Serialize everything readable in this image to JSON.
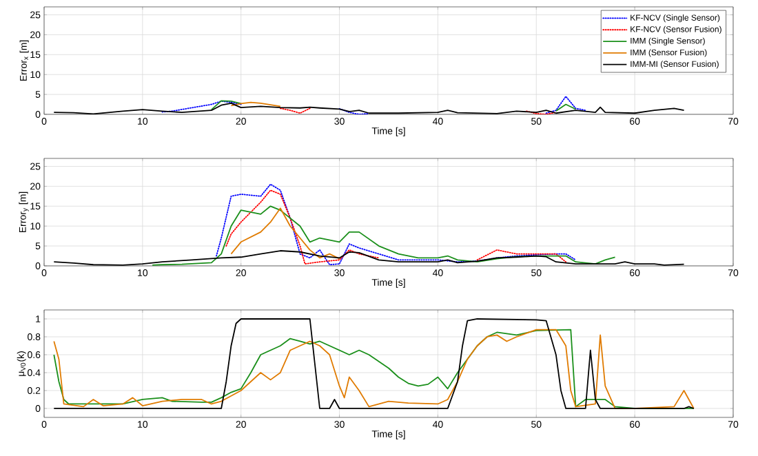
{
  "chart_data": [
    {
      "type": "line",
      "xlabel": "Time [s]",
      "ylabel": "Error$_{x}$ [m]",
      "xlim": [
        0,
        70
      ],
      "ylim": [
        0,
        27
      ],
      "xticks": [
        0,
        10,
        20,
        30,
        40,
        50,
        60,
        70
      ],
      "yticks": [
        0,
        5,
        10,
        15,
        20,
        25
      ],
      "grid": true,
      "legend": "top right",
      "series": [
        {
          "name": "KF-NCV (Single Sensor)",
          "color": "#0000ff",
          "line_style": "dotted",
          "x": [
            12,
            13,
            17,
            18,
            19,
            20,
            21,
            30,
            31,
            32,
            33,
            40,
            51,
            52,
            53,
            54,
            55
          ],
          "values": [
            0.6,
            0.8,
            2.5,
            3.3,
            3.0,
            2.5,
            null,
            1.4,
            0.5,
            0,
            0.2,
            null,
            0.3,
            1.0,
            4.5,
            1.5,
            1.0
          ]
        },
        {
          "name": "KF-NCV (Sensor Fusion)",
          "color": "#ff0000",
          "line_style": "dotted",
          "x": [
            24,
            25,
            26,
            27,
            38,
            49,
            50,
            51,
            52
          ],
          "values": [
            1.5,
            1.0,
            0.3,
            1.5,
            null,
            0.8,
            0.2,
            0,
            0.5
          ]
        },
        {
          "name": "IMM (Single Sensor)",
          "color": "#1a8f1a",
          "line_style": "solid",
          "x": [
            17,
            18,
            19,
            20,
            36,
            52,
            53,
            54
          ],
          "values": [
            1.2,
            3.4,
            3.3,
            2.7,
            null,
            0.8,
            2.5,
            1.3
          ]
        },
        {
          "name": "IMM (Sensor Fusion)",
          "color": "#e07b00",
          "line_style": "solid",
          "x": [
            19,
            20,
            21,
            22,
            23,
            24
          ],
          "values": [
            2.2,
            2.7,
            3.0,
            2.8,
            2.4,
            2.0
          ]
        },
        {
          "name": "IMM-MI (Sensor Fusion)",
          "color": "#000000",
          "line_style": "solid",
          "x": [
            1,
            3,
            5,
            8,
            10,
            12,
            14,
            17,
            18,
            19,
            20,
            22,
            24,
            26,
            27,
            28,
            30,
            31,
            32,
            33,
            36,
            40,
            41,
            42,
            46,
            48,
            50,
            51,
            52,
            54,
            56,
            56.5,
            57,
            60,
            62,
            64,
            65
          ],
          "values": [
            0.5,
            0.4,
            0.1,
            0.8,
            1.2,
            0.8,
            0.5,
            1.0,
            2.3,
            2.8,
            1.7,
            2.0,
            1.7,
            1.6,
            1.8,
            1.6,
            1.3,
            0.7,
            1.0,
            0.3,
            0.3,
            0.5,
            1.0,
            0.4,
            0.2,
            0.8,
            0.5,
            1.0,
            0.3,
            1.0,
            0.5,
            1.8,
            0.5,
            0.3,
            1.0,
            1.5,
            1.0
          ]
        }
      ]
    },
    {
      "type": "line",
      "xlabel": "Time [s]",
      "ylabel": "Error$_{y}$ [m]",
      "xlim": [
        0,
        70
      ],
      "ylim": [
        0,
        27
      ],
      "xticks": [
        0,
        10,
        20,
        30,
        40,
        50,
        60,
        70
      ],
      "yticks": [
        0,
        5,
        10,
        15,
        20,
        25
      ],
      "grid": true,
      "series": [
        {
          "color": "#0000ff",
          "line_style": "dotted",
          "x": [
            17.5,
            18,
            19,
            20,
            22,
            23,
            24,
            25,
            26,
            27,
            28,
            29,
            30,
            31,
            32,
            34,
            36,
            40,
            42,
            44,
            46,
            48,
            50,
            52,
            53,
            54
          ],
          "values": [
            2.5,
            7,
            17.5,
            18,
            17.5,
            20.5,
            19,
            12,
            3,
            2,
            4,
            0.3,
            0.5,
            5.5,
            4.5,
            3.0,
            1.5,
            1.5,
            1,
            1.2,
            2.0,
            2.5,
            2.8,
            3.0,
            3.0,
            1.5
          ]
        },
        {
          "color": "#ff0000",
          "line_style": "dotted",
          "x": [
            18.5,
            19,
            20,
            22,
            23,
            24,
            25,
            26,
            26.5,
            28,
            30,
            31,
            32,
            34,
            38,
            44,
            46,
            48,
            50,
            52,
            53
          ],
          "values": [
            5,
            8,
            11,
            16,
            19,
            18,
            12,
            5,
            0.5,
            1,
            1.5,
            4,
            3,
            2,
            null,
            1.5,
            4,
            3,
            3,
            3,
            1
          ]
        },
        {
          "color": "#1a8f1a",
          "line_style": "solid",
          "x": [
            11,
            12,
            14,
            17,
            18,
            19,
            20,
            22,
            23,
            24,
            26,
            27,
            28,
            30,
            31,
            32,
            34,
            36,
            38,
            40,
            41,
            42,
            44,
            46,
            48,
            50,
            53,
            54,
            56,
            57,
            58
          ],
          "values": [
            0.2,
            0.3,
            0.4,
            0.8,
            3,
            10,
            14,
            13,
            15,
            14,
            10,
            6,
            7,
            6,
            8.5,
            8.5,
            5,
            3,
            2,
            2,
            2.5,
            1.5,
            1,
            1.8,
            2.3,
            2.5,
            2.5,
            1,
            0.5,
            1.5,
            2.2
          ]
        },
        {
          "color": "#e07b00",
          "line_style": "solid",
          "x": [
            19,
            20,
            22,
            23,
            24,
            25,
            26,
            27,
            28,
            29,
            30
          ],
          "values": [
            3,
            6,
            8.5,
            11,
            14.5,
            10,
            7,
            4,
            2,
            3,
            1.8
          ]
        },
        {
          "color": "#000000",
          "line_style": "solid",
          "x": [
            1,
            3,
            5,
            8,
            10,
            12,
            15,
            18,
            20,
            22,
            24,
            26,
            28,
            30,
            31,
            32,
            34,
            36,
            40,
            41,
            42,
            44,
            46,
            48,
            50,
            51,
            52,
            54,
            56,
            58,
            59,
            60,
            62,
            63,
            65
          ],
          "values": [
            1,
            0.7,
            0.3,
            0.2,
            0.5,
            1.0,
            1.5,
            2,
            2.2,
            3,
            3.8,
            3.5,
            2.5,
            2.0,
            3.5,
            3.3,
            1.5,
            1,
            1,
            1.5,
            0.8,
            1.2,
            2,
            2.2,
            2.5,
            2.3,
            1,
            0.5,
            0.5,
            0.5,
            1,
            0.5,
            0.5,
            0.2,
            0.4
          ]
        }
      ]
    },
    {
      "type": "line",
      "xlabel": "Time [s]",
      "ylabel": "μ$_{V0}$(k)",
      "xlim": [
        0,
        70
      ],
      "ylim": [
        -0.1,
        1.1
      ],
      "xticks": [
        0,
        10,
        20,
        30,
        40,
        50,
        60,
        70
      ],
      "yticks": [
        0,
        0.2,
        0.4,
        0.6,
        0.8,
        1
      ],
      "grid": true,
      "series": [
        {
          "color": "#1a8f1a",
          "line_style": "solid",
          "x": [
            1,
            1.5,
            2,
            2.5,
            4,
            5,
            8,
            10,
            12,
            13,
            16,
            17,
            18,
            19,
            20,
            21,
            22,
            23,
            24,
            25,
            26,
            27,
            28,
            30,
            31,
            32,
            33,
            35,
            36,
            37,
            38,
            39,
            40,
            41,
            42,
            43,
            44,
            45,
            46,
            48,
            50,
            53.5,
            54,
            55,
            57,
            58,
            60,
            66
          ],
          "values": [
            0.6,
            0.3,
            0.1,
            0.05,
            0.05,
            0.05,
            0.05,
            0.1,
            0.12,
            0.08,
            0.07,
            0.07,
            0.12,
            0.18,
            0.22,
            0.4,
            0.6,
            0.65,
            0.7,
            0.78,
            0.75,
            0.72,
            0.75,
            0.65,
            0.6,
            0.65,
            0.6,
            0.45,
            0.35,
            0.28,
            0.25,
            0.27,
            0.35,
            0.22,
            0.4,
            0.55,
            0.7,
            0.8,
            0.85,
            0.82,
            0.87,
            0.88,
            0.02,
            0.1,
            0.1,
            0.02,
            0,
            0
          ]
        },
        {
          "color": "#e07b00",
          "line_style": "solid",
          "x": [
            1,
            1.5,
            2,
            4,
            5,
            6,
            8,
            9,
            10,
            12,
            14,
            16,
            17,
            18,
            20,
            21,
            22,
            23,
            24,
            25,
            26,
            27,
            28,
            29,
            30,
            30.5,
            31,
            32,
            33,
            35,
            37,
            40,
            41,
            42,
            43,
            44,
            45,
            46,
            47,
            48,
            50,
            52,
            53,
            53.5,
            54,
            56,
            56.5,
            57,
            58,
            60,
            64,
            65,
            66
          ],
          "values": [
            0.75,
            0.55,
            0.05,
            0.02,
            0.1,
            0.03,
            0.05,
            0.12,
            0.03,
            0.08,
            0.1,
            0.1,
            0.05,
            0.08,
            0.2,
            0.3,
            0.4,
            0.32,
            0.4,
            0.65,
            0.7,
            0.75,
            0.7,
            0.6,
            0.25,
            0.12,
            0.35,
            0.2,
            0.02,
            0.08,
            0.06,
            0.05,
            0.1,
            0.3,
            0.55,
            0.7,
            0.8,
            0.82,
            0.75,
            0.8,
            0.88,
            0.88,
            0.7,
            0.2,
            0.02,
            0.05,
            0.82,
            0.25,
            0,
            0,
            0.02,
            0.2,
            0
          ]
        },
        {
          "color": "#000000",
          "line_style": "solid",
          "x": [
            1,
            18,
            18.5,
            19,
            19.5,
            20,
            27,
            27.5,
            28,
            29,
            29.5,
            30,
            41,
            42,
            42.5,
            43,
            44,
            50,
            51,
            52,
            52.5,
            53,
            55,
            55.5,
            56,
            56.5,
            65,
            65.5,
            66
          ],
          "values": [
            0,
            0,
            0.3,
            0.7,
            0.95,
            1,
            1,
            0.5,
            0,
            0,
            0.1,
            0,
            0,
            0.3,
            0.7,
            0.98,
            1,
            0.99,
            0.98,
            0.6,
            0.2,
            0,
            0,
            0.65,
            0.1,
            0,
            0,
            0.02,
            0
          ]
        }
      ]
    }
  ]
}
